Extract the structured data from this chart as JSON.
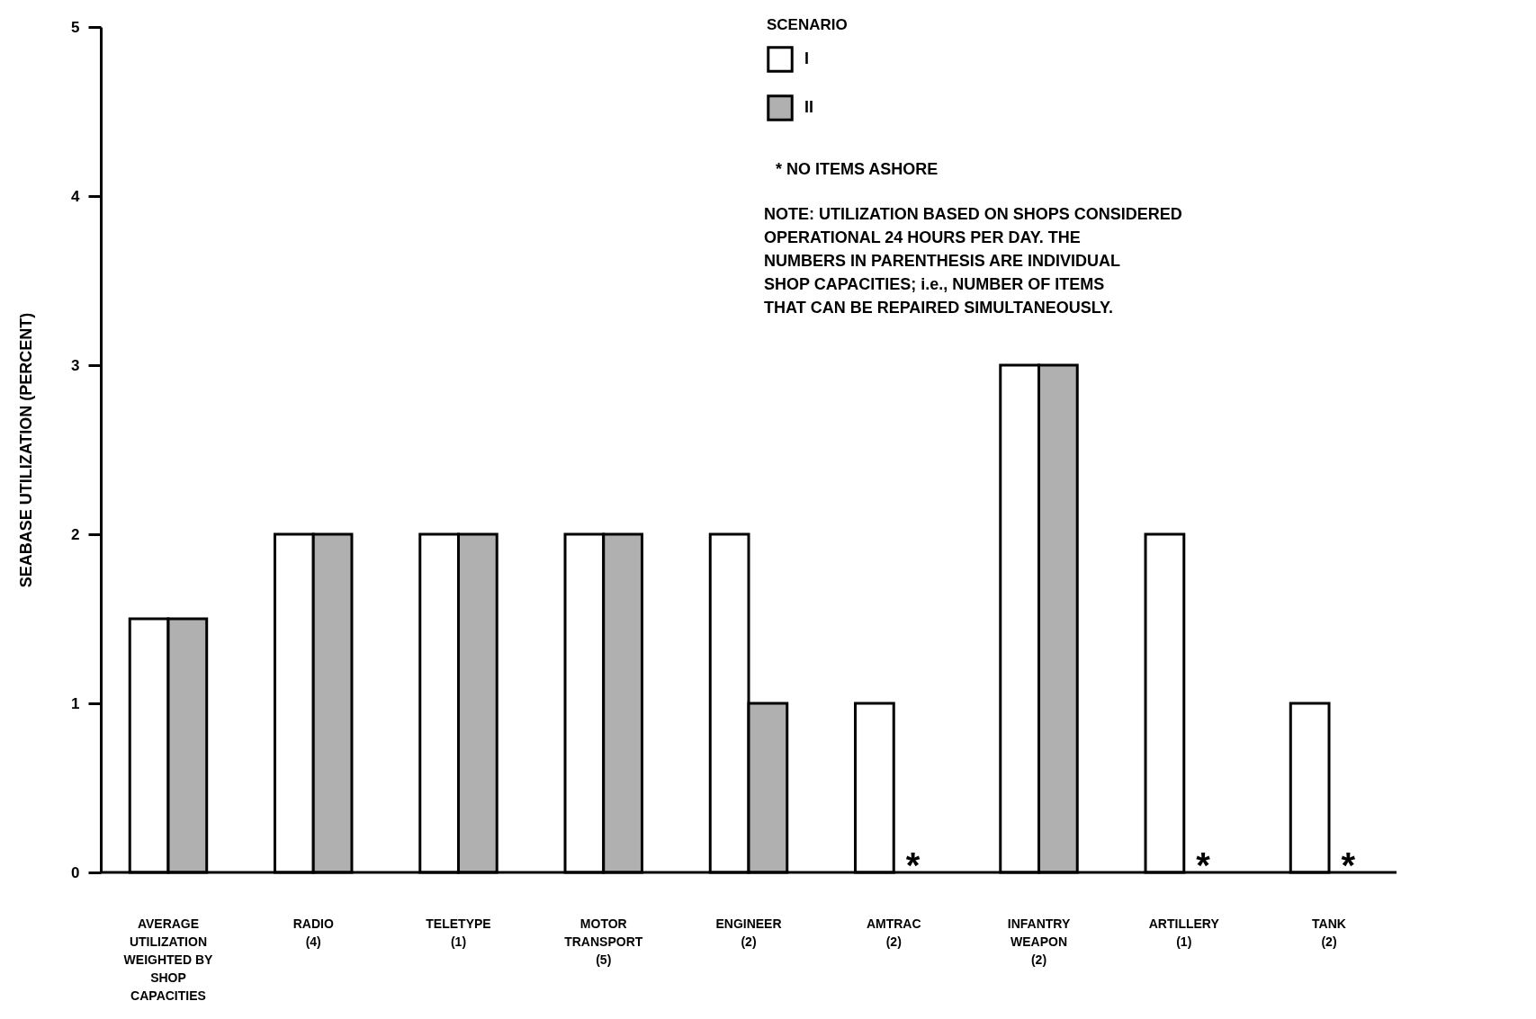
{
  "chart_data": {
    "type": "bar",
    "ylabel": "SEABASE UTILIZATION (PERCENT)",
    "legend_title": "SCENARIO",
    "categories": [
      "AVERAGE\nUTILIZATION\nWEIGHTED BY\nSHOP\nCAPACITIES",
      "RADIO\n(4)",
      "TELETYPE\n(1)",
      "MOTOR\nTRANSPORT\n(5)",
      "ENGINEER\n(2)",
      "AMTRAC\n(2)",
      "INFANTRY\nWEAPON\n(2)",
      "ARTILLERY\n(1)",
      "TANK\n(2)"
    ],
    "series": [
      {
        "name": "I",
        "color": "#ffffff",
        "values": [
          1.5,
          2,
          2,
          2,
          2,
          1,
          3,
          2,
          1
        ]
      },
      {
        "name": "II",
        "color": "#b0b0b0",
        "values": [
          1.5,
          2,
          2,
          2,
          1,
          null,
          3,
          null,
          null
        ]
      }
    ],
    "ylim": [
      0,
      5
    ],
    "yticks": [
      0,
      1,
      2,
      3,
      4,
      5
    ],
    "grid": false,
    "legend": "top right",
    "annotations": [
      {
        "text": "*",
        "x": "AMTRAC\n(2)",
        "y": 0
      },
      {
        "text": "*",
        "x": "ARTILLERY\n(1)",
        "y": 0
      },
      {
        "text": "*",
        "x": "TANK\n(2)",
        "y": 0
      },
      "* NO ITEMS ASHORE",
      "NOTE:  UTILIZATION BASED ON SHOPS CONSIDERED\nOPERATIONAL 24 HOURS PER DAY.  THE\nNUMBERS IN PARENTHESIS ARE INDIVIDUAL\nSHOP CAPACITIES; i.e., NUMBER OF ITEMS\nTHAT CAN BE REPAIRED SIMULTANEOUSLY."
    ]
  }
}
